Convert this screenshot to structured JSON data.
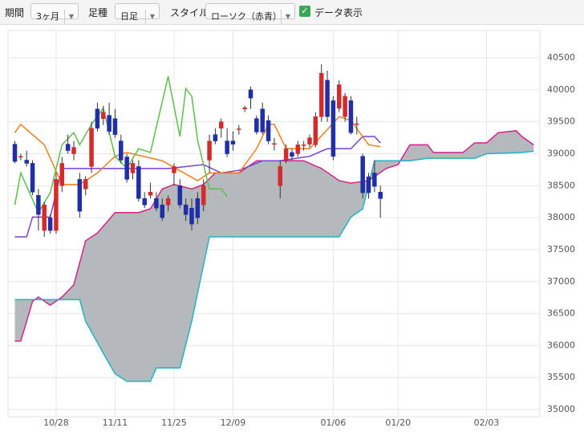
{
  "toolbar": {
    "period_label": "期間",
    "period_value": "3ヶ月",
    "bar_label": "足種",
    "bar_value": "日足",
    "style_label": "スタイル",
    "style_value": "ローソク（赤青）",
    "data_label": "データ表示"
  },
  "chart_data": {
    "type": "candlestick",
    "candles": {
      "x": [
        0,
        1,
        2,
        3,
        4,
        5,
        6,
        7,
        8,
        9,
        10,
        11,
        12,
        13,
        14,
        15,
        16,
        17,
        18,
        19,
        20,
        21,
        22,
        23,
        24,
        25,
        26,
        27,
        28,
        29,
        30,
        31,
        32,
        33,
        34,
        35,
        36,
        37,
        38,
        39,
        40,
        41,
        42,
        43,
        44,
        45,
        46,
        47,
        48,
        49,
        50,
        51,
        52,
        53,
        54,
        55,
        56,
        57,
        58,
        59,
        60,
        61,
        62
      ],
      "open": [
        39150,
        38950,
        38900,
        38850,
        38350,
        37800,
        38000,
        37800,
        38500,
        39150,
        39000,
        38600,
        38450,
        38800,
        39700,
        39550,
        39600,
        39550,
        39200,
        38950,
        38700,
        38800,
        38300,
        38350,
        38300,
        38200,
        38200,
        38700,
        38500,
        38200,
        38150,
        38300,
        38200,
        38900,
        39300,
        39400,
        39200,
        39200,
        39380,
        39700,
        40000,
        39550,
        39700,
        39520,
        39150,
        38500,
        38900,
        39020,
        39000,
        39130,
        39150,
        39140,
        39580,
        40150,
        39830,
        39710,
        39580,
        39830,
        39460,
        38960,
        38640,
        38700,
        38400
      ],
      "high": [
        39200,
        39000,
        39050,
        38900,
        38450,
        38250,
        38050,
        38700,
        38950,
        39300,
        39200,
        38700,
        38650,
        39500,
        39800,
        39750,
        39800,
        39700,
        39300,
        39000,
        38900,
        38900,
        38400,
        38550,
        38400,
        38300,
        38350,
        38850,
        38600,
        38300,
        38300,
        38400,
        38600,
        39300,
        39400,
        39550,
        39400,
        39350,
        39450,
        39750,
        40050,
        39600,
        39800,
        39600,
        39250,
        38900,
        39150,
        39080,
        39200,
        39200,
        39300,
        39650,
        40400,
        40300,
        39900,
        40150,
        39950,
        39900,
        39580,
        39000,
        38700,
        38900,
        38500
      ],
      "low": [
        38850,
        38900,
        38800,
        38350,
        37800,
        37700,
        37750,
        37750,
        38400,
        39000,
        38900,
        38000,
        38350,
        38700,
        39350,
        39450,
        39300,
        39250,
        38850,
        38550,
        38600,
        38250,
        38150,
        38300,
        38100,
        37950,
        38100,
        38500,
        38150,
        37950,
        37800,
        37900,
        38100,
        38700,
        39150,
        39250,
        38950,
        39050,
        39300,
        39650,
        39700,
        39300,
        39300,
        39150,
        39050,
        38300,
        38850,
        38900,
        38950,
        39050,
        39100,
        39100,
        39500,
        39500,
        38900,
        39650,
        39500,
        39300,
        39300,
        38300,
        38300,
        38400,
        38000
      ],
      "close": [
        38880,
        38960,
        38850,
        38400,
        38050,
        38200,
        37800,
        38600,
        38850,
        39050,
        39100,
        38100,
        38600,
        39400,
        39400,
        39650,
        39350,
        39300,
        38900,
        38600,
        38850,
        38300,
        38200,
        38400,
        38150,
        38000,
        38300,
        38800,
        38200,
        38050,
        37900,
        38000,
        38500,
        39200,
        39200,
        39500,
        39000,
        39150,
        39390,
        39720,
        39870,
        39340,
        39340,
        39200,
        39160,
        38800,
        39080,
        38960,
        39140,
        39140,
        39250,
        39580,
        40260,
        39580,
        38960,
        40080,
        39900,
        39330,
        39470,
        38390,
        38390,
        38490,
        38300
      ],
      "up_color": "#d42b2b",
      "down_color": "#1f2fa6"
    },
    "series": [
      {
        "color": "#d6228a",
        "x": [
          0,
          1,
          3,
          4,
          6,
          8,
          10,
          12,
          14,
          17,
          21,
          23,
          25,
          27,
          30,
          32,
          34,
          38,
          41,
          49,
          52,
          55,
          57,
          60,
          63,
          65,
          67,
          70,
          71,
          76,
          78,
          80,
          82,
          85,
          86,
          88
        ],
        "values": [
          36070,
          36070,
          36690,
          36760,
          36630,
          36760,
          36950,
          37640,
          37760,
          38080,
          38080,
          38140,
          38450,
          38520,
          38450,
          38520,
          38700,
          38700,
          38890,
          38890,
          38770,
          38580,
          38540,
          38580,
          38770,
          38830,
          39140,
          39140,
          39020,
          39020,
          39170,
          39170,
          39330,
          39360,
          39270,
          39140
        ]
      },
      {
        "color": "#22b3c4",
        "x": [
          0,
          11,
          12,
          15,
          17,
          19,
          23,
          24,
          28,
          30,
          33,
          55,
          57,
          59,
          61,
          67,
          70,
          78,
          80,
          86,
          88
        ],
        "values": [
          36720,
          36720,
          36380,
          35880,
          35560,
          35440,
          35440,
          35650,
          35650,
          36380,
          37700,
          37700,
          38010,
          38140,
          38890,
          38890,
          38930,
          38930,
          39000,
          39020,
          39040
        ]
      },
      {
        "color": "#7b3fd6",
        "x": [
          0,
          2,
          3,
          6,
          8,
          26,
          32,
          35,
          38,
          42,
          45,
          50,
          53,
          57,
          59,
          61,
          62
        ],
        "values": [
          37700,
          37700,
          38010,
          38010,
          38770,
          38770,
          38830,
          38700,
          38740,
          38890,
          38890,
          38960,
          39080,
          39080,
          39270,
          39270,
          39170
        ]
      },
      {
        "color": "#f07f1e",
        "x": [
          0,
          1,
          5,
          8,
          11,
          14,
          17,
          19,
          25,
          31,
          33,
          38,
          41,
          43,
          44,
          46,
          50,
          55,
          57,
          60,
          62
        ],
        "values": [
          39330,
          39460,
          39140,
          38520,
          38520,
          38700,
          38960,
          39020,
          38890,
          38580,
          38700,
          38700,
          39080,
          39460,
          39460,
          39080,
          39080,
          39580,
          39520,
          39140,
          39110
        ]
      },
      {
        "color": "#5cbf4a",
        "x": [
          0,
          1,
          4,
          6,
          8,
          10,
          11,
          13,
          15,
          17,
          19,
          21,
          23,
          26,
          28,
          29,
          30,
          31,
          33,
          35,
          36
        ],
        "values": [
          38200,
          38700,
          38080,
          38390,
          39140,
          39330,
          39140,
          39460,
          39710,
          38960,
          38770,
          39080,
          39020,
          40210,
          39270,
          40020,
          39900,
          39210,
          38450,
          38450,
          38330
        ]
      }
    ],
    "cloud_color": "#b4babc",
    "xlim": [
      -1.2,
      89
    ],
    "xticks": [
      {
        "value": 7,
        "label": "10/28"
      },
      {
        "value": 17,
        "label": "11/11"
      },
      {
        "value": 27,
        "label": "11/25"
      },
      {
        "value": 37,
        "label": "12/09"
      },
      {
        "value": 54,
        "label": "01/06"
      },
      {
        "value": 65,
        "label": "01/20"
      },
      {
        "value": 80,
        "label": "02/03"
      }
    ],
    "ylim": [
      34900,
      40900
    ],
    "yticks": [
      35000,
      35500,
      36000,
      36500,
      37000,
      37500,
      38000,
      38500,
      39000,
      39500,
      40000,
      40500
    ],
    "grid": true
  }
}
